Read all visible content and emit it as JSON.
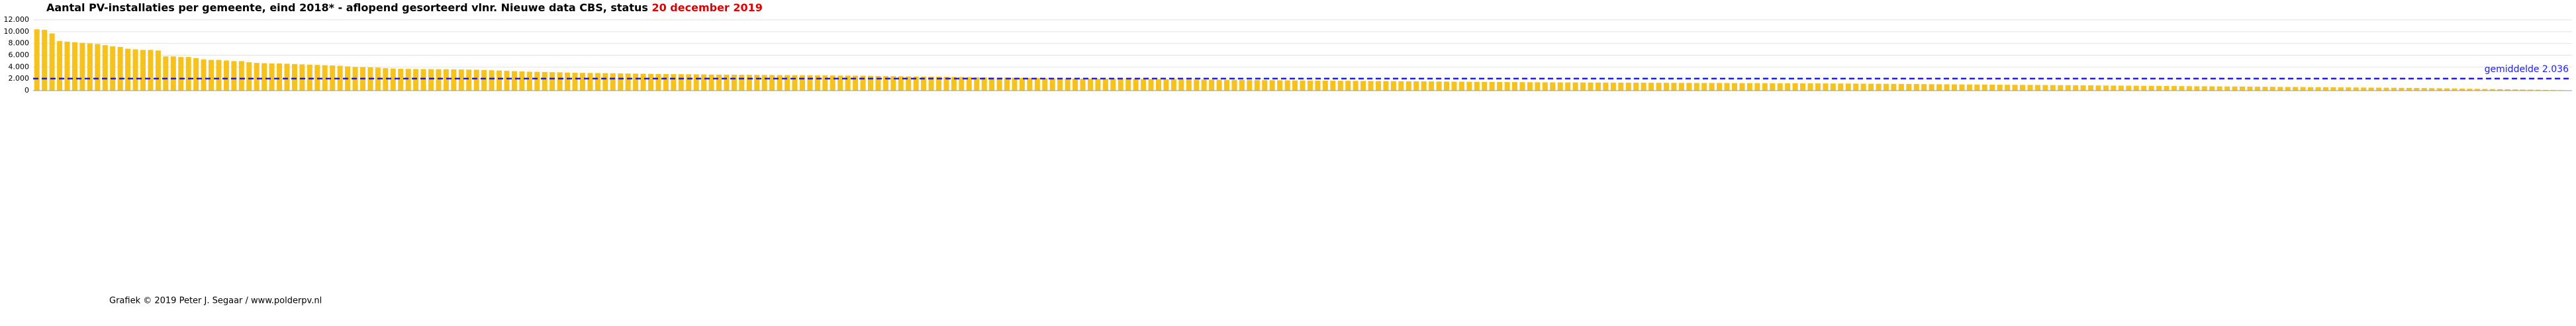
{
  "chart_data": {
    "type": "bar",
    "title": "Aantal PV-installaties per gemeente, eind 2018* - aflopend gesorteerd vlnr. Nieuwe data CBS, status ",
    "title_highlight": "20 december 2019",
    "footer": "Grafiek  © 2019 Peter J. Segaar / www.polderpv.nl",
    "color": "#f7c21b",
    "grid": true,
    "ylim": [
      0,
      12000
    ],
    "yticks": [
      0,
      {
        "value": 2000,
        "label": "2.000"
      },
      {
        "value": 4000,
        "label": "4.000"
      },
      {
        "value": 6000,
        "label": "6.000"
      },
      {
        "value": 8000,
        "label": "8.000"
      },
      {
        "value": 10000,
        "label": "10.000"
      },
      {
        "value": 12000,
        "label": "12.000"
      }
    ],
    "average": {
      "value": 2036,
      "label": "gemiddelde 2.036",
      "color": "#1a1aff"
    },
    "categories": [
      null,
      null,
      null,
      null,
      null,
      null,
      null,
      null,
      null,
      null,
      null,
      null,
      null,
      null,
      null,
      null,
      null,
      null,
      null,
      null,
      null,
      null,
      null,
      null,
      null,
      null,
      null,
      null,
      null,
      null,
      null,
      null,
      null,
      null,
      null,
      null,
      null,
      null,
      null,
      null,
      null,
      null,
      null,
      null,
      null,
      null,
      null,
      null,
      null,
      null,
      null,
      null,
      null,
      null,
      null,
      null,
      null,
      null,
      null,
      null,
      null,
      null,
      null,
      null,
      null,
      null,
      null,
      null,
      null,
      null,
      null,
      null,
      null,
      null,
      null,
      null,
      null,
      null,
      null,
      null,
      null,
      null,
      null,
      null,
      null,
      null,
      null,
      null,
      null,
      null,
      null,
      null,
      null,
      null,
      null,
      null,
      null,
      null,
      null,
      null,
      null,
      null,
      null,
      null,
      null,
      null,
      null,
      null,
      null,
      null,
      null,
      null,
      null,
      null,
      null,
      null,
      null,
      null,
      null,
      null,
      null,
      null,
      null,
      null,
      null,
      null,
      null,
      null,
      null,
      null,
      null,
      null,
      null,
      null,
      null,
      null,
      null,
      null,
      null,
      null,
      null,
      null,
      null,
      null,
      null,
      null,
      null,
      null,
      null,
      null,
      null,
      null,
      null,
      null,
      null,
      null,
      null,
      null,
      null,
      null,
      null,
      null,
      null,
      null,
      null,
      null,
      null,
      null,
      null,
      null,
      null,
      null,
      null,
      null,
      null,
      null,
      null,
      null,
      null,
      null,
      null,
      null,
      null,
      null,
      null,
      null,
      null,
      null,
      null,
      null,
      null,
      null,
      null,
      null,
      null,
      null,
      null,
      null,
      null,
      null,
      null,
      null,
      null,
      null,
      null,
      null,
      null,
      null,
      null,
      null,
      null,
      null,
      null,
      null,
      null,
      null,
      null,
      null,
      null,
      null,
      null,
      null,
      null,
      null,
      null,
      null,
      null,
      null,
      null,
      null,
      null,
      null,
      null,
      null,
      null,
      null,
      null,
      null,
      null,
      null,
      null,
      null,
      null,
      null,
      null,
      null,
      null,
      null,
      null,
      null,
      null,
      null,
      null,
      null,
      null,
      null,
      null,
      null,
      null,
      null,
      null,
      null,
      null,
      null,
      null,
      null,
      null,
      null,
      null,
      null,
      null,
      null,
      null,
      null,
      null,
      null,
      null,
      null,
      null,
      null,
      null,
      null,
      null,
      null,
      null,
      null,
      null,
      null,
      null,
      null,
      null,
      null,
      null,
      null,
      null,
      null,
      null,
      null,
      null,
      null,
      null,
      null,
      null,
      null,
      null,
      null,
      null,
      null,
      null,
      null,
      null,
      null,
      null,
      null,
      null,
      null,
      null,
      null,
      null,
      null,
      null,
      null,
      null,
      null,
      null,
      null,
      null,
      null,
      null,
      null,
      null,
      null,
      null,
      null,
      null
    ],
    "values": [
      10400,
      10300,
      9700,
      8400,
      8300,
      8200,
      8100,
      8000,
      7900,
      7700,
      7500,
      7400,
      7100,
      7000,
      6900,
      6900,
      6800,
      5800,
      5800,
      5700,
      5700,
      5500,
      5300,
      5200,
      5200,
      5100,
      5000,
      5000,
      4800,
      4700,
      4650,
      4600,
      4600,
      4550,
      4500,
      4450,
      4400,
      4350,
      4300,
      4250,
      4200,
      4100,
      4000,
      3980,
      3950,
      3900,
      3800,
      3750,
      3700,
      3680,
      3660,
      3650,
      3640,
      3630,
      3620,
      3600,
      3580,
      3560,
      3540,
      3500,
      3450,
      3400,
      3350,
      3300,
      3250,
      3200,
      3180,
      3150,
      3120,
      3100,
      3050,
      3020,
      3000,
      2990,
      2980,
      2960,
      2940,
      2920,
      2900,
      2880,
      2860,
      2840,
      2820,
      2800,
      2790,
      2780,
      2770,
      2760,
      2740,
      2720,
      2710,
      2700,
      2690,
      2680,
      2670,
      2660,
      2650,
      2640,
      2630,
      2620,
      2610,
      2600,
      2590,
      2580,
      2570,
      2560,
      2550,
      2540,
      2530,
      2520,
      2500,
      2480,
      2460,
      2440,
      2420,
      2400,
      2390,
      2380,
      2370,
      2360,
      2340,
      2320,
      2300,
      2280,
      2260,
      2250,
      2240,
      2220,
      2200,
      2180,
      2160,
      2140,
      2120,
      2100,
      2080,
      2060,
      2040,
      2020,
      2010,
      2000,
      1990,
      1980,
      1970,
      1960,
      1950,
      1940,
      1930,
      1920,
      1910,
      1900,
      1890,
      1880,
      1870,
      1860,
      1850,
      1840,
      1830,
      1820,
      1810,
      1800,
      1790,
      1780,
      1770,
      1760,
      1750,
      1740,
      1730,
      1720,
      1710,
      1700,
      1690,
      1680,
      1670,
      1660,
      1650,
      1640,
      1630,
      1620,
      1610,
      1600,
      1590,
      1580,
      1570,
      1560,
      1550,
      1540,
      1530,
      1520,
      1510,
      1500,
      1490,
      1480,
      1470,
      1460,
      1450,
      1440,
      1430,
      1420,
      1410,
      1400,
      1395,
      1390,
      1385,
      1380,
      1375,
      1370,
      1365,
      1360,
      1355,
      1350,
      1345,
      1340,
      1335,
      1330,
      1325,
      1320,
      1315,
      1310,
      1305,
      1300,
      1295,
      1290,
      1285,
      1280,
      1275,
      1270,
      1265,
      1260,
      1255,
      1250,
      1245,
      1240,
      1235,
      1230,
      1225,
      1220,
      1215,
      1210,
      1205,
      1200,
      1190,
      1180,
      1170,
      1160,
      1150,
      1140,
      1130,
      1120,
      1110,
      1100,
      1090,
      1080,
      1070,
      1060,
      1050,
      1040,
      1030,
      1020,
      1010,
      1000,
      990,
      980,
      970,
      960,
      950,
      940,
      930,
      920,
      910,
      900,
      890,
      880,
      870,
      860,
      850,
      840,
      830,
      820,
      810,
      800,
      790,
      780,
      770,
      760,
      750,
      740,
      730,
      720,
      710,
      700,
      690,
      680,
      670,
      660,
      650,
      640,
      630,
      620,
      610,
      600,
      590,
      580,
      570,
      560,
      550,
      540,
      530,
      520,
      510,
      500,
      490,
      480,
      470,
      460,
      450,
      440,
      420,
      400,
      380,
      360,
      340,
      320,
      300,
      280,
      260,
      240,
      220,
      200,
      180,
      160,
      140,
      120,
      100,
      80,
      50
    ]
  }
}
